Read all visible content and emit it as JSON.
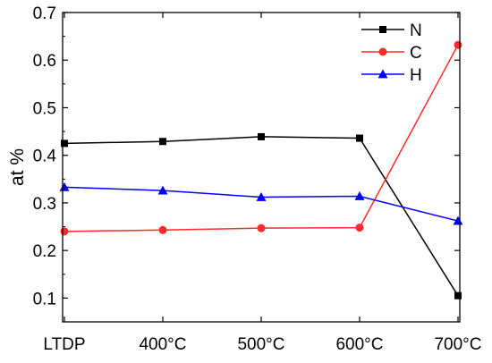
{
  "chart_data": {
    "type": "line",
    "categories": [
      "LTDP",
      "400°C",
      "500°C",
      "600°C",
      "700°C"
    ],
    "xlabel": "",
    "ylabel": "at %",
    "ylim": [
      0.05,
      0.7
    ],
    "yticks": [
      0.1,
      0.2,
      0.3,
      0.4,
      0.5,
      0.6,
      0.7
    ],
    "ytick_labels": [
      "0.1",
      "0.2",
      "0.3",
      "0.4",
      "0.5",
      "0.6",
      "0.7"
    ],
    "grid": false,
    "legend_position": "top-right",
    "series": [
      {
        "name": "N",
        "values": [
          0.425,
          0.429,
          0.439,
          0.436,
          0.105
        ],
        "color": "#000000",
        "marker": "square"
      },
      {
        "name": "C",
        "values": [
          0.24,
          0.243,
          0.247,
          0.248,
          0.632
        ],
        "color": "#ff2a2a",
        "marker": "circle"
      },
      {
        "name": "H",
        "values": [
          0.333,
          0.326,
          0.312,
          0.314,
          0.262
        ],
        "color": "#0000ff",
        "marker": "triangle"
      }
    ]
  }
}
